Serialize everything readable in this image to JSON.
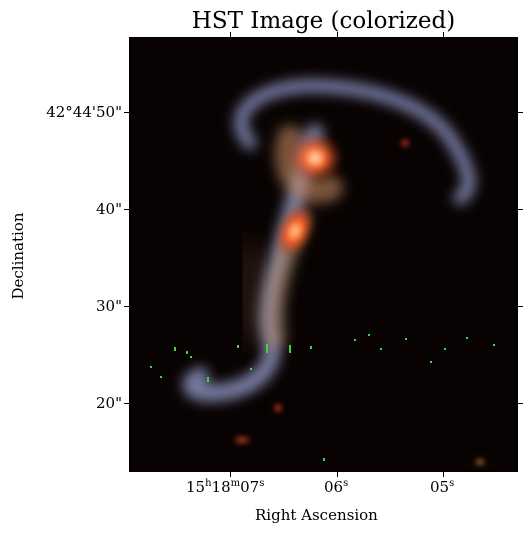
{
  "figure": {
    "title": "HST Image (colorized)",
    "x_axis_label": "Right Ascension",
    "y_axis_label": "Declination"
  },
  "y_ticks": {
    "t1": "42°44'50\"",
    "t2": "40\"",
    "t3": "30\"",
    "t4": "20\""
  },
  "x_ticks": {
    "t1": {
      "main": "15",
      "s1": "h",
      "mid": "18",
      "s2": "m",
      "tail": "07",
      "s3": "s"
    },
    "t2": {
      "main": "06",
      "s1": "s"
    },
    "t3": {
      "main": "05",
      "s1": "s"
    }
  },
  "image": {
    "subject": "interacting-galaxy-pair",
    "background_color": "#080302",
    "core_color": "#ff4a22",
    "arm_color": "#aab0e0"
  }
}
